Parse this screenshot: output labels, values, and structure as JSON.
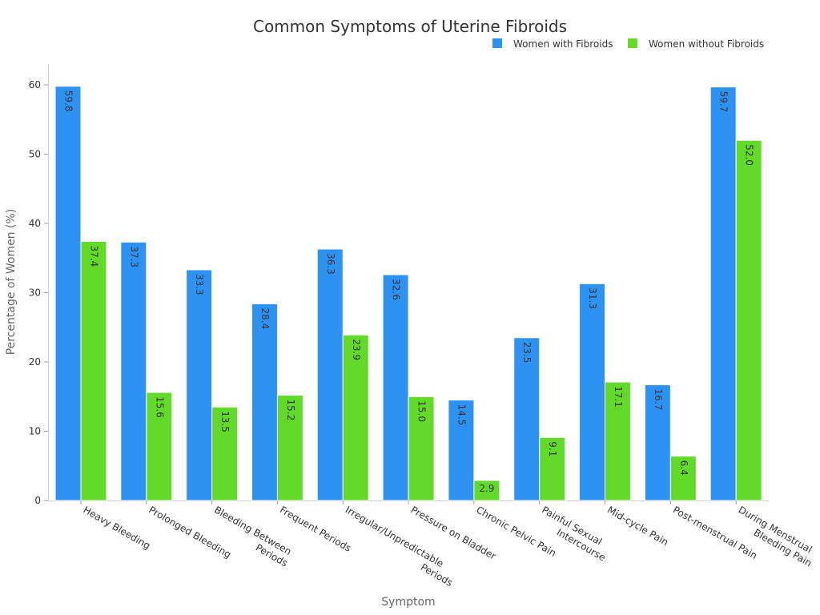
{
  "chart_data": {
    "type": "bar",
    "title": "Common Symptoms of Uterine Fibroids",
    "xlabel": "Symptom",
    "ylabel": "Percentage of Women (%)",
    "ylim": [
      0,
      60
    ],
    "yticks": [
      0,
      10,
      20,
      30,
      40,
      50,
      60
    ],
    "grid": false,
    "legend_position": "top-right",
    "categories": [
      "Heavy Bleeding",
      "Prolonged Bleeding",
      "Bleeding Between Periods",
      "Frequent Periods",
      "Irregular/Unpredictable Periods",
      "Pressure on Bladder",
      "Chronic Pelvic Pain",
      "Painful Sexual Intercourse",
      "Mid-cycle Pain",
      "Post-menstrual Pain",
      "During Menstrual Bleeding Pain"
    ],
    "category_lines": [
      [
        "Heavy Bleeding"
      ],
      [
        "Prolonged Bleeding"
      ],
      [
        "Bleeding Between",
        "Periods"
      ],
      [
        "Frequent Periods"
      ],
      [
        "Irregular/Unpredictable",
        "Periods"
      ],
      [
        "Pressure on Bladder"
      ],
      [
        "Chronic Pelvic Pain"
      ],
      [
        "Painful Sexual",
        "Intercourse"
      ],
      [
        "Mid-cycle Pain"
      ],
      [
        "Post-menstrual Pain"
      ],
      [
        "During Menstrual",
        "Bleeding Pain"
      ]
    ],
    "series": [
      {
        "name": "Women with Fibroids",
        "color": "#2e92f2",
        "values": [
          59.8,
          37.3,
          33.3,
          28.4,
          36.3,
          32.6,
          14.5,
          23.5,
          31.3,
          16.7,
          59.7
        ]
      },
      {
        "name": "Women without Fibroids",
        "color": "#63d92a",
        "values": [
          37.4,
          15.6,
          13.5,
          15.2,
          23.9,
          15.0,
          2.9,
          9.1,
          17.1,
          6.4,
          52.0
        ]
      }
    ]
  }
}
